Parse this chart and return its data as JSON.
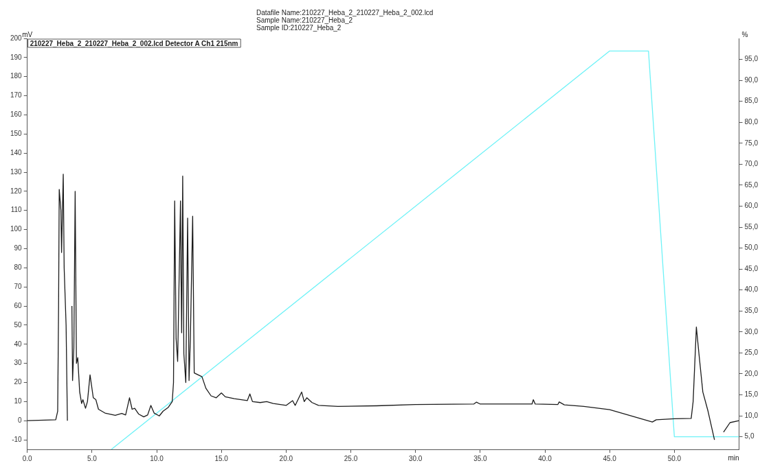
{
  "chart_data": {
    "type": "line",
    "title": "Datafile Name:210227_Heba_2_210227_Heba_2_002.lcd",
    "subtitle": "Sample Name:210227_Heba_2",
    "annotations": [
      "Sample ID:210227_Heba_2"
    ],
    "xlabel": "min",
    "ylabel": "mV",
    "y2label": "%",
    "legend": "top left",
    "grid": false,
    "marker": "none",
    "line_style": "solid",
    "xlim": [
      0,
      55
    ],
    "xticks": [
      {
        "value": 0,
        "label": "0.0"
      },
      {
        "value": 5,
        "label": "5.0"
      },
      {
        "value": 10,
        "label": "10.0"
      },
      {
        "value": 15,
        "label": "15.0"
      },
      {
        "value": 20,
        "label": "20.0"
      },
      {
        "value": 25,
        "label": "25.0"
      },
      {
        "value": 30,
        "label": "30.0"
      },
      {
        "value": 35,
        "label": "35.0"
      },
      {
        "value": 40,
        "label": "40.0"
      },
      {
        "value": 45,
        "label": "45.0"
      },
      {
        "value": 50,
        "label": "50.0"
      }
    ],
    "ylim": [
      -15,
      200
    ],
    "yticks": [
      -10,
      0,
      10,
      20,
      30,
      40,
      50,
      60,
      70,
      80,
      90,
      100,
      110,
      120,
      130,
      140,
      150,
      160,
      170,
      180,
      190,
      200
    ],
    "y2lim": [
      2,
      100
    ],
    "y2ticks": [
      {
        "value": 5,
        "label": "5,0"
      },
      {
        "value": 10,
        "label": "10,0"
      },
      {
        "value": 15,
        "label": "15,0"
      },
      {
        "value": 20,
        "label": "20,0"
      },
      {
        "value": 25,
        "label": "25,0"
      },
      {
        "value": 30,
        "label": "30,0"
      },
      {
        "value": 35,
        "label": "35,0"
      },
      {
        "value": 40,
        "label": "40,0"
      },
      {
        "value": 45,
        "label": "45,0"
      },
      {
        "value": 50,
        "label": "50,0"
      },
      {
        "value": 55,
        "label": "55,0"
      },
      {
        "value": 60,
        "label": "60,0"
      },
      {
        "value": 65,
        "label": "65,0"
      },
      {
        "value": 70,
        "label": "70,0"
      },
      {
        "value": 75,
        "label": "75,0"
      },
      {
        "value": 80,
        "label": "80,0"
      },
      {
        "value": 85,
        "label": "85,0"
      },
      {
        "value": 90,
        "label": "90,0"
      },
      {
        "value": 95,
        "label": "95,0"
      }
    ],
    "series": [
      {
        "name": "210227_Heba_2_210227_Heba_2_002.lcd Detector A Ch1 215nm",
        "color": "#1a1a1a",
        "x": [
          0,
          2.2,
          2.35,
          2.42,
          2.47,
          2.6,
          2.65,
          2.78,
          2.85,
          3.0,
          3.1,
          3.15,
          3.36,
          3.45,
          3.5,
          3.6,
          3.7,
          3.8,
          3.9,
          4.05,
          4.2,
          4.3,
          4.5,
          4.65,
          4.85,
          5.1,
          5.3,
          5.5,
          6.0,
          6.8,
          7.3,
          7.6,
          7.9,
          8.1,
          8.3,
          8.6,
          9.0,
          9.3,
          9.55,
          9.8,
          10.2,
          10.5,
          10.9,
          11.2,
          11.3,
          11.39,
          11.5,
          11.62,
          11.84,
          11.88,
          11.93,
          12.01,
          12.1,
          12.25,
          12.39,
          12.5,
          12.6,
          12.78,
          12.9,
          13.2,
          13.5,
          13.8,
          14.2,
          14.6,
          15.0,
          15.3,
          16,
          17.0,
          17.2,
          17.4,
          18,
          18.5,
          19,
          20,
          20.5,
          20.7,
          21.2,
          21.4,
          21.6,
          22,
          22.5,
          24,
          27,
          30,
          34.5,
          34.7,
          35,
          39,
          39.1,
          39.25,
          41,
          41.1,
          41.5,
          43,
          45,
          48.3,
          48.6,
          50,
          51.3,
          51.45,
          51.7,
          51.9,
          52.2,
          52.6,
          53.1,
          53.25,
          53.6,
          53.8,
          54.3,
          55
        ],
        "values": [
          0,
          0.5,
          5,
          60,
          121,
          110,
          88,
          129,
          80,
          50,
          0,
          null,
          null,
          60,
          21,
          38,
          120,
          30,
          33,
          15,
          9,
          11,
          6.5,
          10,
          24,
          12,
          11,
          6,
          4,
          2.8,
          3.8,
          3,
          12,
          6,
          6.5,
          3.5,
          2,
          3,
          8,
          4,
          2.5,
          5,
          7,
          10,
          20,
          115,
          43,
          31,
          115,
          76,
          46,
          128,
          35,
          20,
          106,
          21,
          42,
          107,
          25,
          24,
          23,
          17,
          13,
          12,
          14.5,
          12.5,
          11.5,
          10.5,
          14,
          10,
          9.5,
          10,
          9,
          8,
          10.5,
          8,
          15,
          10,
          12,
          9.5,
          8,
          7.5,
          7.8,
          8.5,
          8.7,
          9.7,
          8.7,
          8.7,
          11,
          8.7,
          8.5,
          9.8,
          8.3,
          7.5,
          5.8,
          -0.7,
          0.5,
          1,
          1.2,
          10,
          49,
          35,
          15,
          5,
          -10,
          null,
          null,
          -6,
          -1,
          0
        ]
      },
      {
        "color": "#6ef2f7",
        "axis": "y2",
        "x": [
          6.5,
          45,
          48,
          50,
          55
        ],
        "values": [
          2,
          97,
          97,
          5,
          5
        ]
      }
    ]
  }
}
